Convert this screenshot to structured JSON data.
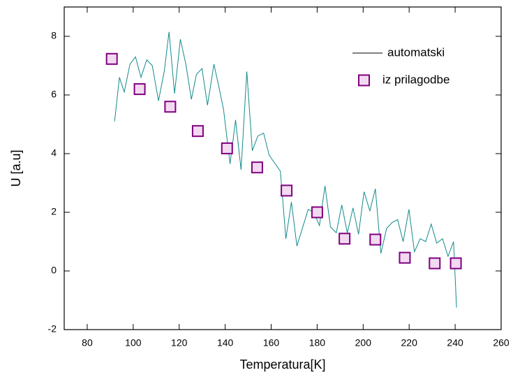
{
  "chart_data": {
    "type": "line",
    "x_label": "Temperatura[K]",
    "y_label": "U [a.u]",
    "xlim": [
      70,
      260
    ],
    "ylim": [
      -2,
      9
    ],
    "xticks": [
      80,
      100,
      120,
      140,
      160,
      180,
      200,
      220,
      240,
      260
    ],
    "yticks": [
      -2,
      0,
      2,
      4,
      6,
      8
    ],
    "legend": "upper right",
    "series": [
      {
        "name": "automatski",
        "type": "line",
        "color": "#138a8a",
        "x": [
          91.9,
          94,
          96.1,
          98.6,
          101,
          103.4,
          105.9,
          108.3,
          111,
          113.5,
          115.6,
          118,
          120.5,
          122.9,
          125.3,
          127.5,
          129.9,
          132.3,
          135.1,
          137.2,
          139.3,
          142.1,
          144.5,
          146.9,
          149.4,
          151.8,
          154.2,
          156.7,
          159.1,
          164,
          166.4,
          168.8,
          171.2,
          176.1,
          178.5,
          181,
          183.4,
          185.8,
          188.3,
          190.7,
          193.1,
          195.6,
          198,
          200.4,
          202.9,
          205.3,
          207.7,
          210.2,
          212.6,
          215,
          217.4,
          219.9,
          222.3,
          224.8,
          227.2,
          229.6,
          232,
          234.5,
          236.9,
          239.3,
          240.6
        ],
        "values": [
          5.1,
          6.6,
          6.1,
          7.05,
          7.3,
          6.6,
          7.2,
          7.0,
          5.8,
          6.8,
          8.15,
          6.05,
          7.9,
          7.05,
          5.85,
          6.7,
          6.9,
          5.65,
          7.05,
          6.3,
          5.5,
          3.65,
          5.15,
          3.45,
          6.8,
          4.1,
          4.6,
          4.7,
          3.95,
          3.4,
          1.1,
          2.35,
          0.85,
          2.1,
          2.0,
          1.55,
          2.9,
          1.5,
          1.3,
          2.25,
          1.3,
          2.15,
          1.25,
          2.7,
          2.05,
          2.8,
          0.6,
          1.45,
          1.65,
          1.75,
          1.0,
          2.1,
          0.65,
          1.1,
          1.0,
          1.6,
          0.95,
          1.1,
          0.5,
          1.0,
          -1.25
        ]
      },
      {
        "name": "iz prilagodbe",
        "type": "scatter",
        "color": "#800080",
        "fill": "#f2d9f0",
        "x": [
          90.7,
          102.8,
          116.1,
          128.1,
          140.8,
          153.9,
          166.7,
          180,
          191.9,
          205.3,
          218.1,
          231.1,
          240.3
        ],
        "values": [
          7.23,
          6.2,
          5.6,
          4.77,
          4.18,
          3.53,
          2.74,
          2.0,
          1.1,
          1.07,
          0.45,
          0.26,
          0.26
        ]
      }
    ]
  }
}
